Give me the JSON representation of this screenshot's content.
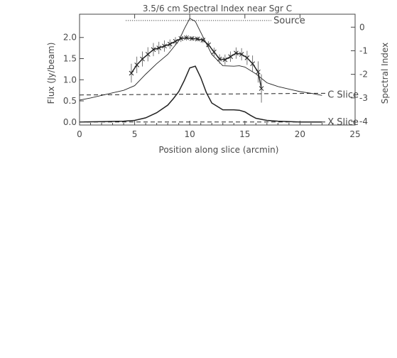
{
  "chart_data": {
    "type": "line",
    "title": "3.5/6 cm Spectral Index near Sgr C",
    "xlabel": "Position along slice (arcmin)",
    "ylabel": "Flux (Jy/beam)",
    "y2label": "Spectral Index",
    "xlim": [
      0,
      25
    ],
    "ylim": [
      -0.07,
      2.55
    ],
    "y2lim": [
      -4.15,
      0.55
    ],
    "x_ticks": [
      0,
      5,
      10,
      15,
      20,
      25
    ],
    "y_ticks": [
      0.0,
      0.5,
      1.0,
      1.5,
      2.0
    ],
    "y2_ticks": [
      -4,
      -3,
      -2,
      -1,
      0
    ],
    "x_tick_labels": [
      "0",
      "5",
      "10",
      "15",
      "20",
      "25"
    ],
    "y_tick_labels": [
      "0.0",
      "0.5",
      "1.0",
      "1.5",
      "2.0"
    ],
    "y2_tick_labels": [
      "-4",
      "-3",
      "-2",
      "-1",
      "0"
    ],
    "annotations": [
      {
        "text": "Source",
        "x": 17.6,
        "y": 2.4
      },
      {
        "text": "C Slice",
        "x": 22.5,
        "y": 0.64
      },
      {
        "text": "X Slice",
        "x": 22.5,
        "y": 0.0
      }
    ],
    "series": [
      {
        "name": "C Slice",
        "axis": "left",
        "x": [
          0,
          1,
          2,
          3,
          4,
          5,
          6,
          7,
          8,
          9,
          9.5,
          10,
          10.5,
          11,
          12,
          13,
          14,
          14.5,
          15,
          16,
          17,
          18,
          19,
          20,
          21,
          22
        ],
        "values": [
          0.52,
          0.57,
          0.63,
          0.69,
          0.75,
          0.86,
          1.13,
          1.38,
          1.6,
          1.92,
          2.2,
          2.45,
          2.38,
          2.12,
          1.6,
          1.33,
          1.32,
          1.33,
          1.3,
          1.14,
          0.93,
          0.84,
          0.78,
          0.72,
          0.68,
          0.63
        ]
      },
      {
        "name": "X Slice",
        "axis": "left",
        "x": [
          0,
          2,
          4,
          5,
          6,
          7,
          8,
          8.5,
          9,
          9.5,
          10,
          10.5,
          11,
          11.5,
          12,
          13,
          14,
          14.5,
          15,
          15.5,
          16,
          17,
          18,
          20,
          22
        ],
        "values": [
          0.0,
          0.01,
          0.02,
          0.04,
          0.1,
          0.22,
          0.4,
          0.55,
          0.72,
          0.98,
          1.28,
          1.32,
          1.05,
          0.7,
          0.45,
          0.29,
          0.29,
          0.28,
          0.24,
          0.16,
          0.09,
          0.04,
          0.02,
          0.0,
          0.0
        ]
      },
      {
        "name": "Spectral Index",
        "axis": "right",
        "x": [
          4.7,
          5.2,
          5.7,
          6.2,
          6.7,
          7.2,
          7.7,
          8.2,
          8.7,
          9.2,
          9.7,
          10.2,
          10.7,
          11.2,
          11.7,
          12.2,
          12.7,
          13.2,
          13.7,
          14.2,
          14.7,
          15.2,
          15.7,
          16.2,
          16.5
        ],
        "values": [
          -1.95,
          -1.6,
          -1.35,
          -1.15,
          -0.95,
          -0.88,
          -0.8,
          -0.72,
          -0.6,
          -0.48,
          -0.45,
          -0.48,
          -0.5,
          -0.55,
          -0.75,
          -1.05,
          -1.35,
          -1.38,
          -1.25,
          -1.1,
          -1.15,
          -1.3,
          -1.55,
          -1.9,
          -2.6
        ],
        "errors": [
          0.4,
          0.35,
          0.32,
          0.3,
          0.28,
          0.26,
          0.24,
          0.2,
          0.18,
          0.15,
          0.12,
          0.1,
          0.1,
          0.12,
          0.15,
          0.18,
          0.2,
          0.22,
          0.22,
          0.24,
          0.26,
          0.3,
          0.35,
          0.45,
          0.6
        ]
      },
      {
        "name": "Source",
        "axis": "left",
        "style": "dotted",
        "x": [
          4.2,
          17.4
        ],
        "values": [
          2.4,
          2.4
        ]
      },
      {
        "name": "C Slice baseline",
        "axis": "left",
        "style": "dashed",
        "x": [
          0,
          22.5
        ],
        "values": [
          0.64,
          0.68
        ]
      },
      {
        "name": "X Slice baseline",
        "axis": "left",
        "style": "dashed",
        "x": [
          0,
          22.5
        ],
        "values": [
          0.0,
          0.0
        ]
      }
    ],
    "grid": false,
    "legend": "none"
  }
}
